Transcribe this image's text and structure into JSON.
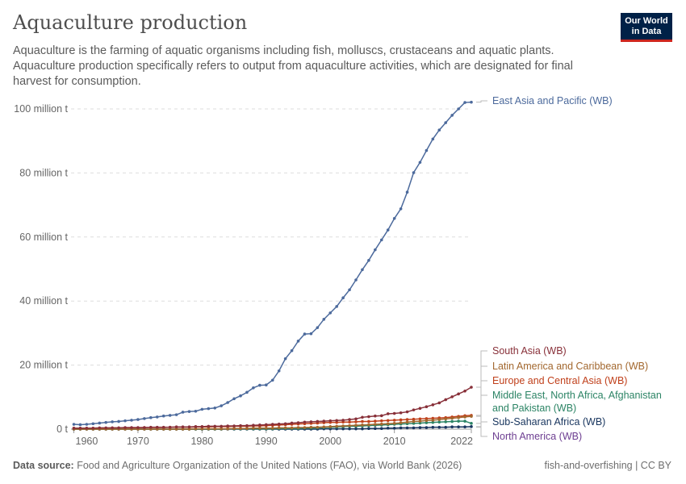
{
  "header": {
    "title": "Aquaculture production",
    "subtitle": "Aquaculture is the farming of aquatic organisms including fish, molluscs, crustaceans and aquatic plants. Aquaculture production specifically refers to output from aquaculture activities, which are designated for final harvest for consumption.",
    "logo": "Our World in Data"
  },
  "footer": {
    "source_label": "Data source:",
    "source": "Food and Agriculture Organization of the United Nations (FAO), via World Bank (2026)",
    "right": "fish-and-overfishing | CC BY"
  },
  "chart_data": {
    "type": "line",
    "title": "Aquaculture production",
    "xlim": [
      1960,
      2022
    ],
    "ylim": [
      0,
      100000000
    ],
    "grid": true,
    "legend": "right",
    "x_ticks": [
      "1960",
      "1970",
      "1980",
      "1990",
      "2000",
      "2010",
      "2022"
    ],
    "y_ticks": [
      "0 t",
      "20 million t",
      "40 million t",
      "60 million t",
      "80 million t",
      "100 million t"
    ],
    "unit": "million t",
    "x_start": 1960,
    "series": [
      {
        "name": "East Asia and Pacific (WB)",
        "color": "#4c6a9c",
        "values": [
          1.5,
          1.4,
          1.5,
          1.7,
          1.9,
          2.1,
          2.3,
          2.4,
          2.6,
          2.8,
          3.0,
          3.3,
          3.6,
          3.8,
          4.1,
          4.3,
          4.5,
          5.3,
          5.5,
          5.6,
          6.2,
          6.4,
          6.6,
          7.3,
          8.3,
          9.5,
          10.4,
          11.5,
          12.9,
          13.7,
          13.8,
          15.3,
          18.2,
          22.0,
          24.5,
          27.5,
          29.7,
          29.8,
          31.7,
          34.3,
          36.3,
          38.3,
          41.0,
          43.5,
          46.6,
          49.8,
          52.7,
          56.0,
          59.1,
          62.2,
          65.8,
          68.8,
          74.0,
          80.1,
          83.3,
          87.0,
          90.6,
          93.4,
          95.7,
          98.0,
          100.0,
          102.0,
          102.1
        ]
      },
      {
        "name": "South Asia (WB)",
        "color": "#883039",
        "values": [
          0.3,
          0.3,
          0.3,
          0.3,
          0.4,
          0.4,
          0.4,
          0.4,
          0.5,
          0.5,
          0.5,
          0.5,
          0.6,
          0.6,
          0.6,
          0.6,
          0.7,
          0.7,
          0.7,
          0.8,
          0.8,
          0.9,
          0.9,
          0.9,
          1.0,
          1.0,
          1.1,
          1.1,
          1.2,
          1.3,
          1.4,
          1.5,
          1.6,
          1.7,
          1.9,
          2.0,
          2.2,
          2.3,
          2.4,
          2.5,
          2.6,
          2.7,
          2.8,
          3.0,
          3.2,
          3.7,
          3.9,
          4.1,
          4.2,
          4.8,
          4.9,
          5.1,
          5.4,
          6.0,
          6.5,
          7.0,
          7.6,
          8.2,
          9.2,
          10.1,
          11.0,
          11.9,
          13.1
        ]
      },
      {
        "name": "Latin America and Caribbean (WB)",
        "color": "#a2672e",
        "values": [
          0,
          0,
          0,
          0,
          0,
          0,
          0,
          0,
          0,
          0,
          0,
          0,
          0,
          0,
          0,
          0,
          0,
          0,
          0,
          0.1,
          0.1,
          0.1,
          0.1,
          0.1,
          0.1,
          0.2,
          0.2,
          0.2,
          0.3,
          0.3,
          0.3,
          0.3,
          0.4,
          0.4,
          0.4,
          0.5,
          0.5,
          0.6,
          0.6,
          0.7,
          0.8,
          0.9,
          1.0,
          1.1,
          1.2,
          1.3,
          1.4,
          1.5,
          1.6,
          1.7,
          1.8,
          2.0,
          2.2,
          2.4,
          2.5,
          2.7,
          2.8,
          3.0,
          3.2,
          3.4,
          3.6,
          3.8,
          4.0
        ]
      },
      {
        "name": "Europe and Central Asia (WB)",
        "color": "#c0401b",
        "values": [
          0.3,
          0.3,
          0.3,
          0.3,
          0.3,
          0.3,
          0.4,
          0.4,
          0.4,
          0.4,
          0.4,
          0.5,
          0.5,
          0.5,
          0.5,
          0.6,
          0.6,
          0.6,
          0.6,
          0.7,
          0.7,
          0.7,
          0.8,
          0.8,
          0.8,
          0.9,
          0.9,
          0.9,
          1.0,
          1.0,
          1.1,
          1.2,
          1.3,
          1.4,
          1.5,
          1.6,
          1.7,
          1.8,
          1.9,
          2.0,
          2.1,
          2.1,
          2.2,
          2.2,
          2.3,
          2.4,
          2.4,
          2.5,
          2.6,
          2.7,
          2.8,
          2.9,
          3.0,
          3.1,
          3.2,
          3.3,
          3.4,
          3.5,
          3.6,
          3.8,
          4.0,
          4.2,
          4.3
        ]
      },
      {
        "name": "Middle East, North Africa, Afghanistan and Pakistan (WB)",
        "color": "#2c8465",
        "values": [
          0,
          0,
          0,
          0,
          0,
          0,
          0,
          0,
          0,
          0,
          0,
          0,
          0,
          0,
          0,
          0,
          0,
          0,
          0,
          0,
          0,
          0,
          0,
          0,
          0.1,
          0.1,
          0.1,
          0.1,
          0.1,
          0.1,
          0.1,
          0.1,
          0.2,
          0.2,
          0.2,
          0.2,
          0.3,
          0.3,
          0.4,
          0.5,
          0.6,
          0.7,
          0.8,
          0.9,
          0.9,
          1.0,
          1.1,
          1.2,
          1.3,
          1.4,
          1.5,
          1.6,
          1.7,
          1.8,
          1.9,
          2.0,
          2.1,
          2.2,
          2.3,
          2.4,
          2.5,
          2.5,
          1.8
        ]
      },
      {
        "name": "Sub-Saharan Africa (WB)",
        "color": "#18355e",
        "values": [
          0,
          0,
          0,
          0,
          0,
          0,
          0,
          0,
          0,
          0,
          0,
          0,
          0,
          0,
          0,
          0,
          0,
          0,
          0,
          0,
          0,
          0,
          0,
          0,
          0,
          0,
          0,
          0,
          0,
          0,
          0,
          0,
          0,
          0,
          0,
          0,
          0,
          0,
          0,
          0.1,
          0.1,
          0.1,
          0.1,
          0.1,
          0.1,
          0.1,
          0.2,
          0.2,
          0.2,
          0.3,
          0.3,
          0.4,
          0.4,
          0.4,
          0.5,
          0.5,
          0.6,
          0.6,
          0.6,
          0.7,
          0.7,
          0.7,
          0.8
        ]
      },
      {
        "name": "North America (WB)",
        "color": "#6d3e91",
        "values": [
          0.1,
          0.1,
          0.1,
          0.1,
          0.1,
          0.1,
          0.1,
          0.1,
          0.1,
          0.1,
          0.1,
          0.1,
          0.1,
          0.1,
          0.1,
          0.2,
          0.2,
          0.2,
          0.2,
          0.2,
          0.2,
          0.2,
          0.2,
          0.2,
          0.2,
          0.2,
          0.2,
          0.2,
          0.2,
          0.2,
          0.3,
          0.3,
          0.3,
          0.3,
          0.3,
          0.3,
          0.3,
          0.3,
          0.3,
          0.3,
          0.4,
          0.4,
          0.4,
          0.4,
          0.4,
          0.4,
          0.4,
          0.4,
          0.4,
          0.4,
          0.5,
          0.5,
          0.5,
          0.5,
          0.5,
          0.5,
          0.5,
          0.5,
          0.5,
          0.5,
          0.6,
          0.6,
          0.6
        ]
      }
    ]
  }
}
